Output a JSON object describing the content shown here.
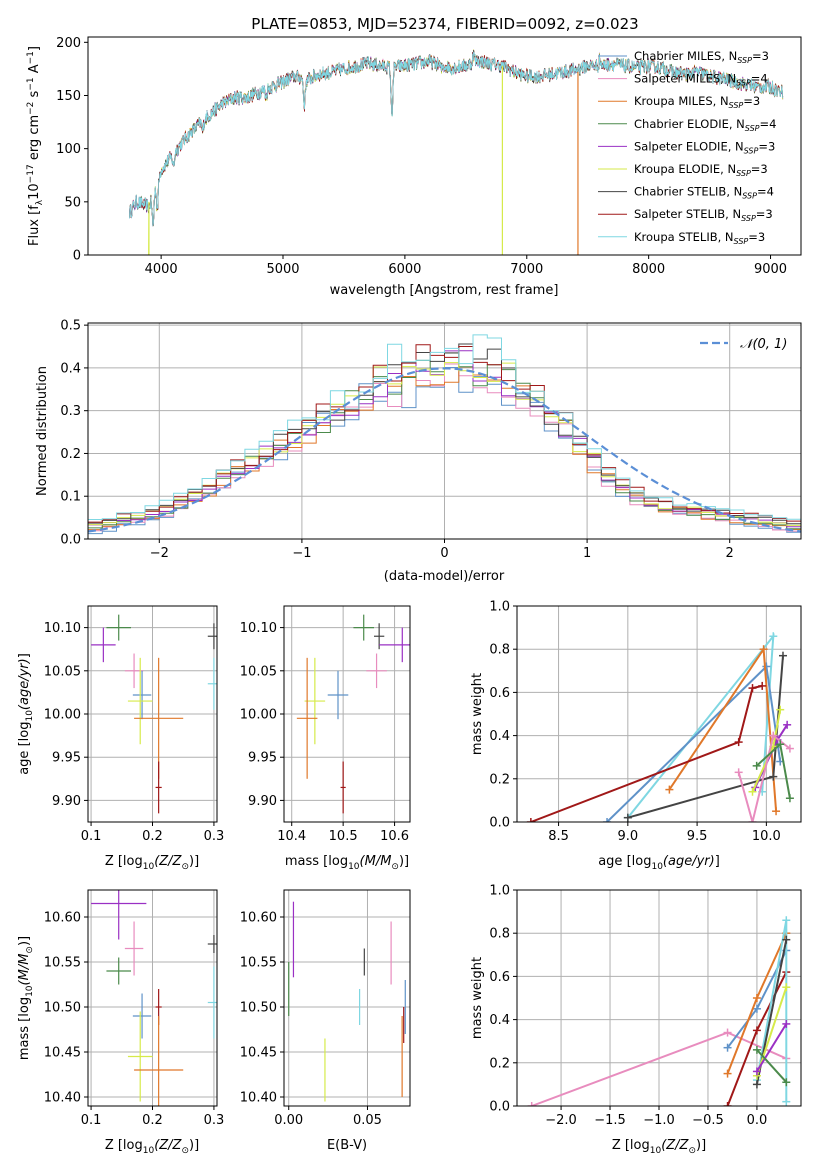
{
  "colors": {
    "chabrier_miles": "#5f92c8",
    "salpeter_miles": "#e88cbe",
    "kroupa_miles": "#e0782a",
    "chabrier_elodie": "#4b8a4b",
    "salpeter_elodie": "#9a30c4",
    "kroupa_elodie": "#d6ea4a",
    "chabrier_stelib": "#444444",
    "salpeter_stelib": "#a01818",
    "kroupa_stelib": "#7fd7e2",
    "normal": "#5b8fd6"
  },
  "chart_data": [
    {
      "type": "line",
      "title": "PLATE=0853, MJD=52374, FIBERID=0092, z=0.023",
      "xlabel": "wavelength [Angstrom, rest frame]",
      "ylabel": "Flux [f",
      "ylabel_parts": [
        "Flux [f",
        "λ",
        "10",
        "−17",
        " erg cm",
        "−2",
        " s",
        "−1",
        " A",
        "−1",
        "]"
      ],
      "xlim": [
        3400,
        9250
      ],
      "ylim": [
        0,
        205
      ],
      "xticks": [
        4000,
        5000,
        6000,
        7000,
        8000,
        9000
      ],
      "yticks": [
        0,
        50,
        100,
        150,
        200
      ],
      "grid": false,
      "legend_position": "right",
      "spectrum_anchor_x": [
        3740,
        3800,
        3900,
        4000,
        4100,
        4200,
        4300,
        4400,
        4500,
        4600,
        4700,
        4800,
        4900,
        5000,
        5100,
        5200,
        5300,
        5400,
        5500,
        5600,
        5700,
        5800,
        5900,
        6000,
        6100,
        6200,
        6300,
        6400,
        6500,
        6600,
        6700,
        6800,
        6900,
        7000,
        7100,
        7200,
        7300,
        7400,
        7500,
        7600,
        7700,
        7800,
        7900,
        8000,
        8100,
        8200,
        8300,
        8400,
        8500,
        8600,
        8700,
        8800,
        8900,
        9000,
        9100
      ],
      "spectrum_anchor_y": [
        40,
        50,
        45,
        80,
        95,
        110,
        122,
        132,
        142,
        148,
        148,
        153,
        158,
        163,
        168,
        165,
        170,
        172,
        175,
        178,
        180,
        178,
        176,
        178,
        180,
        182,
        178,
        176,
        178,
        183,
        180,
        178,
        172,
        168,
        168,
        170,
        172,
        174,
        178,
        178,
        180,
        178,
        176,
        178,
        176,
        172,
        170,
        172,
        168,
        166,
        163,
        160,
        158,
        158,
        153
      ],
      "series": [
        {
          "name": "Chabrier MILES, N",
          "n_ssp": "3",
          "color_key": "chabrier_miles"
        },
        {
          "name": "Salpeter MILES, N",
          "n_ssp": "4",
          "color_key": "salpeter_miles"
        },
        {
          "name": "Kroupa MILES, N",
          "n_ssp": "3",
          "color_key": "kroupa_miles"
        },
        {
          "name": "Chabrier ELODIE, N",
          "n_ssp": "4",
          "color_key": "chabrier_elodie"
        },
        {
          "name": "Salpeter ELODIE, N",
          "n_ssp": "3",
          "color_key": "salpeter_elodie"
        },
        {
          "name": "Kroupa ELODIE, N",
          "n_ssp": "3",
          "color_key": "kroupa_elodie"
        },
        {
          "name": "Chabrier STELIB, N",
          "n_ssp": "4",
          "color_key": "chabrier_stelib"
        },
        {
          "name": "Salpeter STELIB, N",
          "n_ssp": "3",
          "color_key": "salpeter_stelib"
        },
        {
          "name": "Kroupa STELIB, N",
          "n_ssp": "3",
          "color_key": "kroupa_stelib"
        }
      ],
      "legend_sub": "SSP"
    },
    {
      "type": "histogram",
      "xlabel": "(data-model)/error",
      "ylabel": "Normed distribution",
      "xlim": [
        -2.5,
        2.5
      ],
      "ylim": [
        0,
        0.505
      ],
      "xticks": [
        -2,
        -1,
        0,
        1,
        2
      ],
      "yticks": [
        0.0,
        0.1,
        0.2,
        0.3,
        0.4,
        0.5
      ],
      "grid": true,
      "legend_position": "top-right",
      "legend": "𝒩(0, 1)",
      "bin_width": 0.1,
      "bin_start": -2.5,
      "base_heights": [
        0.03,
        0.035,
        0.045,
        0.05,
        0.06,
        0.07,
        0.085,
        0.1,
        0.12,
        0.14,
        0.16,
        0.18,
        0.2,
        0.22,
        0.24,
        0.26,
        0.28,
        0.3,
        0.32,
        0.34,
        0.36,
        0.37,
        0.38,
        0.39,
        0.4,
        0.41,
        0.405,
        0.4,
        0.39,
        0.37,
        0.35,
        0.32,
        0.29,
        0.26,
        0.22,
        0.18,
        0.15,
        0.12,
        0.1,
        0.085,
        0.075,
        0.07,
        0.065,
        0.06,
        0.055,
        0.05,
        0.045,
        0.04,
        0.035,
        0.03
      ],
      "normal_curve": {
        "mu": 0,
        "sigma": 1
      }
    },
    {
      "type": "errorbar",
      "xlabel": "Z [log",
      "ylabel": "age  [log",
      "xlim": [
        0.095,
        0.305
      ],
      "ylim": [
        9.875,
        10.125
      ],
      "xticks": [
        0.1,
        0.2,
        0.3
      ],
      "yticks": [
        9.9,
        9.95,
        10.0,
        10.05,
        10.1
      ],
      "grid": true,
      "points": [
        {
          "color_key": "chabrier_elodie",
          "x": 0.145,
          "xerr": 0.02,
          "y": 10.1,
          "yerr": 0.015
        },
        {
          "color_key": "salpeter_elodie",
          "x": 0.12,
          "xerr": 0.02,
          "y": 10.08,
          "yerr": 0.02
        },
        {
          "color_key": "salpeter_miles",
          "x": 0.17,
          "xerr": 0.015,
          "y": 10.05,
          "yerr": 0.02
        },
        {
          "color_key": "chabrier_miles",
          "x": 0.183,
          "xerr": 0.015,
          "y": 10.022,
          "yerr": 0.028
        },
        {
          "color_key": "kroupa_elodie",
          "x": 0.18,
          "xerr": 0.02,
          "y": 10.015,
          "yerr": 0.05
        },
        {
          "color_key": "kroupa_miles",
          "x": 0.21,
          "xerr": 0.04,
          "y": 9.995,
          "yerr": 0.07
        },
        {
          "color_key": "salpeter_stelib",
          "x": 0.21,
          "xerr": 0.005,
          "y": 9.915,
          "yerr": 0.03
        },
        {
          "color_key": "chabrier_stelib",
          "x": 0.3,
          "xerr": 0.01,
          "y": 10.09,
          "yerr": 0.015
        },
        {
          "color_key": "kroupa_stelib",
          "x": 0.3,
          "xerr": 0.01,
          "y": 10.035,
          "yerr": 0.03
        }
      ]
    },
    {
      "type": "errorbar",
      "xlabel": "mass [log",
      "ylabel": "",
      "xlim": [
        10.385,
        10.63
      ],
      "ylim": [
        9.875,
        10.125
      ],
      "xticks": [
        10.4,
        10.5,
        10.6
      ],
      "yticks": [
        9.9,
        9.95,
        10.0,
        10.05,
        10.1
      ],
      "grid": true,
      "points": [
        {
          "color_key": "chabrier_elodie",
          "x": 10.54,
          "xerr": 0.02,
          "y": 10.1,
          "yerr": 0.015
        },
        {
          "color_key": "chabrier_stelib",
          "x": 10.57,
          "xerr": 0.01,
          "y": 10.09,
          "yerr": 0.015
        },
        {
          "color_key": "salpeter_elodie",
          "x": 10.615,
          "xerr": 0.045,
          "y": 10.08,
          "yerr": 0.02
        },
        {
          "color_key": "salpeter_miles",
          "x": 10.565,
          "xerr": 0.02,
          "y": 10.05,
          "yerr": 0.02
        },
        {
          "color_key": "chabrier_miles",
          "x": 10.49,
          "xerr": 0.02,
          "y": 10.022,
          "yerr": 0.028
        },
        {
          "color_key": "kroupa_elodie",
          "x": 10.445,
          "xerr": 0.02,
          "y": 10.015,
          "yerr": 0.05
        },
        {
          "color_key": "kroupa_miles",
          "x": 10.43,
          "xerr": 0.02,
          "y": 9.995,
          "yerr": 0.07
        },
        {
          "color_key": "salpeter_stelib",
          "x": 10.5,
          "xerr": 0.005,
          "y": 9.915,
          "yerr": 0.03
        }
      ]
    },
    {
      "type": "line",
      "xlabel": "age  [log",
      "ylabel": "mass weight",
      "xlim": [
        8.2,
        10.25
      ],
      "ylim": [
        0,
        1.0
      ],
      "xticks": [
        8.5,
        9.0,
        9.5,
        10.0
      ],
      "yticks": [
        0.0,
        0.2,
        0.4,
        0.6,
        0.8,
        1.0
      ],
      "grid": true,
      "series": [
        {
          "color_key": "kroupa_stelib",
          "x": [
            9.0,
            10.05,
            9.97
          ],
          "y": [
            0.02,
            0.86,
            0.14
          ]
        },
        {
          "color_key": "chabrier_miles",
          "x": [
            8.85,
            10.0,
            10.1
          ],
          "y": [
            0.0,
            0.72,
            0.28
          ]
        },
        {
          "color_key": "kroupa_miles",
          "x": [
            9.3,
            9.98,
            10.07
          ],
          "y": [
            0.15,
            0.8,
            0.05
          ]
        },
        {
          "color_key": "salpeter_stelib",
          "x": [
            8.3,
            9.8,
            9.9,
            9.97
          ],
          "y": [
            0.0,
            0.37,
            0.62,
            0.63
          ]
        },
        {
          "color_key": "chabrier_stelib",
          "x": [
            9.0,
            10.05,
            10.12
          ],
          "y": [
            0.02,
            0.21,
            0.77
          ]
        },
        {
          "color_key": "salpeter_elodie",
          "x": [
            9.92,
            10.08,
            10.15
          ],
          "y": [
            0.16,
            0.38,
            0.45
          ]
        },
        {
          "color_key": "kroupa_elodie",
          "x": [
            9.9,
            10.05,
            10.1
          ],
          "y": [
            0.14,
            0.35,
            0.52
          ]
        },
        {
          "color_key": "salpeter_miles",
          "x": [
            9.8,
            9.9,
            10.05,
            10.17
          ],
          "y": [
            0.23,
            0.0,
            0.4,
            0.34
          ]
        },
        {
          "color_key": "chabrier_elodie",
          "x": [
            9.93,
            10.1,
            10.17
          ],
          "y": [
            0.26,
            0.36,
            0.11
          ]
        }
      ]
    },
    {
      "type": "errorbar",
      "xlabel": "Z [log",
      "ylabel": "mass [log",
      "xlim": [
        0.095,
        0.305
      ],
      "ylim": [
        10.39,
        10.63
      ],
      "xticks": [
        0.1,
        0.2,
        0.3
      ],
      "yticks": [
        10.4,
        10.45,
        10.5,
        10.55,
        10.6
      ],
      "grid": true,
      "points": [
        {
          "color_key": "salpeter_elodie",
          "x": 0.145,
          "xerr": 0.045,
          "y": 10.615,
          "yerr": 0.04
        },
        {
          "color_key": "salpeter_miles",
          "x": 0.17,
          "xerr": 0.015,
          "y": 10.565,
          "yerr": 0.03
        },
        {
          "color_key": "chabrier_elodie",
          "x": 0.145,
          "xerr": 0.02,
          "y": 10.54,
          "yerr": 0.015
        },
        {
          "color_key": "chabrier_stelib",
          "x": 0.3,
          "xerr": 0.01,
          "y": 10.57,
          "yerr": 0.01
        },
        {
          "color_key": "kroupa_stelib",
          "x": 0.3,
          "xerr": 0.01,
          "y": 10.505,
          "yerr": 0.04
        },
        {
          "color_key": "chabrier_miles",
          "x": 0.183,
          "xerr": 0.015,
          "y": 10.49,
          "yerr": 0.025
        },
        {
          "color_key": "salpeter_stelib",
          "x": 0.21,
          "xerr": 0.005,
          "y": 10.5,
          "yerr": 0.02
        },
        {
          "color_key": "kroupa_elodie",
          "x": 0.18,
          "xerr": 0.02,
          "y": 10.445,
          "yerr": 0.05
        },
        {
          "color_key": "kroupa_miles",
          "x": 0.21,
          "xerr": 0.04,
          "y": 10.43,
          "yerr": 0.06
        }
      ]
    },
    {
      "type": "errorbar",
      "xlabel": "E(B-V)",
      "ylabel": "",
      "xlim": [
        -0.003,
        0.077
      ],
      "ylim": [
        10.39,
        10.63
      ],
      "xticks": [
        0.0,
        0.05
      ],
      "yticks": [
        10.4,
        10.45,
        10.5,
        10.55,
        10.6
      ],
      "grid": true,
      "points": [
        {
          "color_key": "salpeter_elodie",
          "x": 0.003,
          "xerr": 0.0,
          "y": 10.575,
          "yerr": 0.042
        },
        {
          "color_key": "chabrier_elodie",
          "x": 0.0,
          "xerr": 0.0,
          "y": 10.52,
          "yerr": 0.03
        },
        {
          "color_key": "kroupa_elodie",
          "x": 0.023,
          "xerr": 0.0,
          "y": 10.43,
          "yerr": 0.035
        },
        {
          "color_key": "kroupa_stelib",
          "x": 0.045,
          "xerr": 0.0,
          "y": 10.5,
          "yerr": 0.02
        },
        {
          "color_key": "chabrier_stelib",
          "x": 0.048,
          "xerr": 0.0,
          "y": 10.55,
          "yerr": 0.015
        },
        {
          "color_key": "salpeter_miles",
          "x": 0.065,
          "xerr": 0.0,
          "y": 10.56,
          "yerr": 0.035
        },
        {
          "color_key": "kroupa_miles",
          "x": 0.072,
          "xerr": 0.0,
          "y": 10.445,
          "yerr": 0.045
        },
        {
          "color_key": "salpeter_stelib",
          "x": 0.073,
          "xerr": 0.0,
          "y": 10.48,
          "yerr": 0.02
        },
        {
          "color_key": "chabrier_miles",
          "x": 0.074,
          "xerr": 0.0,
          "y": 10.5,
          "yerr": 0.03
        }
      ]
    },
    {
      "type": "line",
      "xlabel": "Z [log",
      "ylabel": "mass weight",
      "xlim": [
        -2.45,
        0.45
      ],
      "ylim": [
        0,
        1.0
      ],
      "xticks": [
        -2.0,
        -1.5,
        -1.0,
        -0.5,
        0.0
      ],
      "yticks": [
        0.0,
        0.2,
        0.4,
        0.6,
        0.8,
        1.0
      ],
      "grid": true,
      "series": [
        {
          "color_key": "salpeter_miles",
          "x": [
            -2.3,
            -0.3,
            0.3
          ],
          "y": [
            0.0,
            0.34,
            0.22
          ]
        },
        {
          "color_key": "salpeter_stelib",
          "x": [
            -0.3,
            0.0,
            0.3
          ],
          "y": [
            0.0,
            0.35,
            0.62
          ]
        },
        {
          "color_key": "chabrier_miles",
          "x": [
            -0.3,
            0.0,
            0.3
          ],
          "y": [
            0.27,
            0.45,
            0.72
          ]
        },
        {
          "color_key": "kroupa_miles",
          "x": [
            -0.3,
            0.0,
            0.3
          ],
          "y": [
            0.15,
            0.5,
            0.8
          ]
        },
        {
          "color_key": "kroupa_stelib",
          "x": [
            0.0,
            0.3,
            0.3
          ],
          "y": [
            0.12,
            0.86,
            0.02
          ]
        },
        {
          "color_key": "chabrier_stelib",
          "x": [
            0.0,
            0.3
          ],
          "y": [
            0.1,
            0.77
          ]
        },
        {
          "color_key": "kroupa_elodie",
          "x": [
            0.0,
            0.3
          ],
          "y": [
            0.14,
            0.55
          ]
        },
        {
          "color_key": "salpeter_elodie",
          "x": [
            0.0,
            0.3
          ],
          "y": [
            0.16,
            0.38
          ]
        },
        {
          "color_key": "chabrier_elodie",
          "x": [
            0.0,
            0.3
          ],
          "y": [
            0.26,
            0.11
          ]
        }
      ]
    }
  ],
  "axis_label_math": {
    "age_unit": "10",
    "age_var": "(age/yr)",
    "Z_var": "(Z/Z",
    "sun": "⊙",
    "close": ")]",
    "mass_var": "(M/M",
    "age_label": "age  [log",
    "mass_label": "mass [log"
  }
}
